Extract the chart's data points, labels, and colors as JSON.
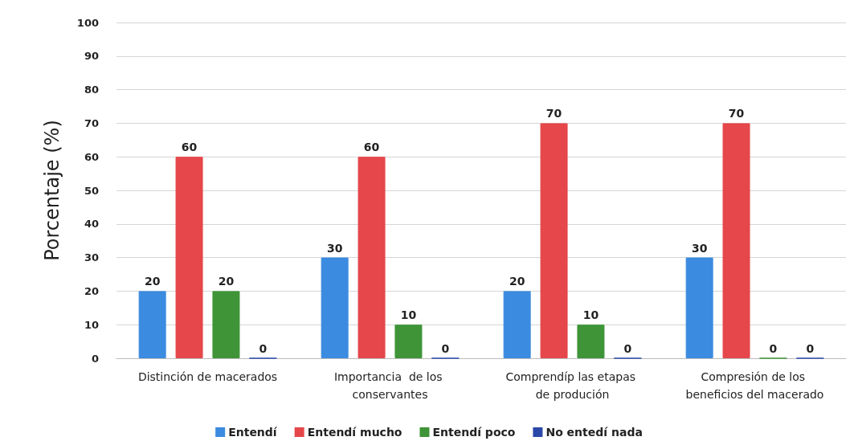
{
  "chart_data": {
    "type": "bar",
    "ylabel": "Porcentaje (%)",
    "categories": [
      "Distinción de macerados",
      "Importancia  de los conservantes",
      "Comprendíp las etapas de produción",
      "Compresión de los beneficios del macerado"
    ],
    "series": [
      {
        "name": "Entendí",
        "color": "#3b8be0",
        "values": [
          20,
          30,
          20,
          30
        ]
      },
      {
        "name": "Entendí mucho",
        "color": "#e5474a",
        "values": [
          60,
          60,
          70,
          70
        ]
      },
      {
        "name": "Entendí poco",
        "color": "#3e9437",
        "values": [
          20,
          10,
          10,
          0
        ]
      },
      {
        "name": "No entedí nada",
        "color": "#2b48a8",
        "values": [
          0,
          0,
          0,
          0
        ]
      }
    ],
    "ylim": [
      0,
      100
    ],
    "yticks": [
      0,
      10,
      20,
      30,
      40,
      50,
      60,
      70,
      80,
      90,
      100
    ],
    "grid": "y",
    "legend": "bottom",
    "data_labels": true
  }
}
